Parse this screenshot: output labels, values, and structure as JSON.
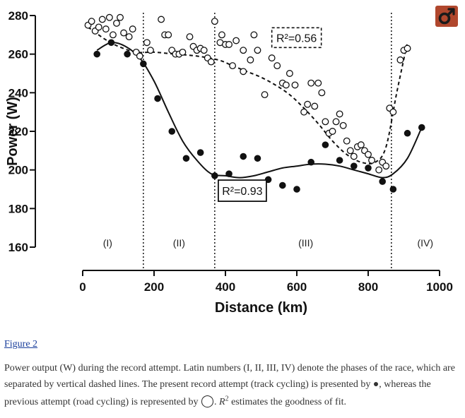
{
  "chart_data": {
    "type": "scatter",
    "xlabel": "Distance (km)",
    "ylabel": "Power (W)",
    "xlim": [
      0,
      1000
    ],
    "ylim": [
      160,
      280
    ],
    "xticks": [
      0,
      200,
      400,
      600,
      800,
      1000
    ],
    "yticks": [
      160,
      180,
      200,
      220,
      240,
      260,
      280
    ],
    "phase_boundaries_km": [
      170,
      370,
      865
    ],
    "phases": [
      {
        "label": "(I)",
        "x": 70
      },
      {
        "label": "(II)",
        "x": 270
      },
      {
        "label": "(III)",
        "x": 625
      },
      {
        "label": "(IV)",
        "x": 960
      }
    ],
    "series": [
      {
        "name": "present attempt (track cycling)",
        "marker": "filled",
        "fit_r2": "R²=0.93",
        "points": [
          [
            40,
            260
          ],
          [
            80,
            266
          ],
          [
            125,
            260
          ],
          [
            170,
            255
          ],
          [
            210,
            237
          ],
          [
            250,
            220
          ],
          [
            290,
            206
          ],
          [
            330,
            209
          ],
          [
            370,
            197
          ],
          [
            410,
            198
          ],
          [
            450,
            207
          ],
          [
            490,
            206
          ],
          [
            520,
            195
          ],
          [
            560,
            192
          ],
          [
            600,
            190
          ],
          [
            640,
            204
          ],
          [
            680,
            213
          ],
          [
            720,
            205
          ],
          [
            760,
            202
          ],
          [
            800,
            201
          ],
          [
            840,
            194
          ],
          [
            870,
            190
          ],
          [
            910,
            219
          ],
          [
            950,
            222
          ]
        ],
        "fit": [
          [
            40,
            262
          ],
          [
            80,
            266
          ],
          [
            120,
            264
          ],
          [
            160,
            258
          ],
          [
            200,
            246
          ],
          [
            240,
            230
          ],
          [
            280,
            215
          ],
          [
            320,
            205
          ],
          [
            360,
            198
          ],
          [
            400,
            197
          ],
          [
            440,
            196
          ],
          [
            480,
            197
          ],
          [
            520,
            199
          ],
          [
            560,
            201
          ],
          [
            600,
            202
          ],
          [
            640,
            203
          ],
          [
            680,
            203
          ],
          [
            720,
            202
          ],
          [
            760,
            200
          ],
          [
            800,
            198
          ],
          [
            840,
            196
          ],
          [
            870,
            198
          ],
          [
            910,
            206
          ],
          [
            950,
            222
          ]
        ]
      },
      {
        "name": "previous attempt (road cycling)",
        "marker": "open",
        "fit_r2": "R²=0.56",
        "points": [
          [
            15,
            275
          ],
          [
            25,
            277
          ],
          [
            35,
            272
          ],
          [
            45,
            274
          ],
          [
            55,
            278
          ],
          [
            65,
            273
          ],
          [
            75,
            279
          ],
          [
            85,
            270
          ],
          [
            95,
            276
          ],
          [
            105,
            279
          ],
          [
            115,
            271
          ],
          [
            130,
            269
          ],
          [
            140,
            273
          ],
          [
            150,
            261
          ],
          [
            160,
            259
          ],
          [
            180,
            266
          ],
          [
            190,
            262
          ],
          [
            220,
            278
          ],
          [
            230,
            270
          ],
          [
            240,
            270
          ],
          [
            250,
            262
          ],
          [
            260,
            260
          ],
          [
            270,
            260
          ],
          [
            280,
            261
          ],
          [
            300,
            269
          ],
          [
            310,
            264
          ],
          [
            320,
            262
          ],
          [
            330,
            263
          ],
          [
            340,
            262
          ],
          [
            350,
            258
          ],
          [
            360,
            256
          ],
          [
            370,
            277
          ],
          [
            385,
            266
          ],
          [
            390,
            270
          ],
          [
            400,
            265
          ],
          [
            410,
            265
          ],
          [
            420,
            254
          ],
          [
            430,
            267
          ],
          [
            450,
            251
          ],
          [
            450,
            262
          ],
          [
            470,
            257
          ],
          [
            480,
            270
          ],
          [
            490,
            262
          ],
          [
            510,
            239
          ],
          [
            530,
            258
          ],
          [
            545,
            254
          ],
          [
            560,
            245
          ],
          [
            570,
            244
          ],
          [
            580,
            250
          ],
          [
            595,
            244
          ],
          [
            620,
            230
          ],
          [
            630,
            234
          ],
          [
            640,
            245
          ],
          [
            650,
            233
          ],
          [
            660,
            245
          ],
          [
            670,
            240
          ],
          [
            680,
            225
          ],
          [
            690,
            219
          ],
          [
            700,
            220
          ],
          [
            710,
            225
          ],
          [
            720,
            229
          ],
          [
            730,
            223
          ],
          [
            740,
            215
          ],
          [
            750,
            210
          ],
          [
            760,
            207
          ],
          [
            770,
            212
          ],
          [
            780,
            213
          ],
          [
            790,
            210
          ],
          [
            800,
            208
          ],
          [
            810,
            205
          ],
          [
            830,
            200
          ],
          [
            840,
            204
          ],
          [
            850,
            202
          ],
          [
            860,
            232
          ],
          [
            870,
            230
          ],
          [
            890,
            257
          ],
          [
            900,
            262
          ],
          [
            910,
            263
          ]
        ],
        "fit": [
          [
            15,
            274
          ],
          [
            60,
            268
          ],
          [
            100,
            264
          ],
          [
            150,
            261
          ],
          [
            200,
            261
          ],
          [
            260,
            260
          ],
          [
            320,
            259
          ],
          [
            380,
            257
          ],
          [
            420,
            254
          ],
          [
            460,
            251
          ],
          [
            500,
            248
          ],
          [
            540,
            244
          ],
          [
            580,
            239
          ],
          [
            620,
            232
          ],
          [
            660,
            224
          ],
          [
            700,
            215
          ],
          [
            740,
            208
          ],
          [
            780,
            204
          ],
          [
            820,
            204
          ],
          [
            850,
            212
          ],
          [
            880,
            240
          ],
          [
            910,
            266
          ]
        ]
      }
    ],
    "annotations": [
      "R²=0.56",
      "R²=0.93"
    ]
  },
  "caption": {
    "figure_link": "Figure 2",
    "text_part1": "Power output (W) during the record attempt. Latin numbers (I, II, III, IV) denote the phases of the race, which are separated by vertical dashed lines. The present record attempt (track cycling) is presented by ",
    "filled_symbol": "●",
    "text_part2": ", whereas the previous attempt (road cycling) is represented by ",
    "open_symbol": "◯",
    "text_part3": ". ",
    "r_letter": "R",
    "r_sup": "2",
    "text_part4": " estimates the goodness of fit."
  },
  "logo": {
    "color": "#b0472d",
    "icon": "male-symbol-icon"
  }
}
